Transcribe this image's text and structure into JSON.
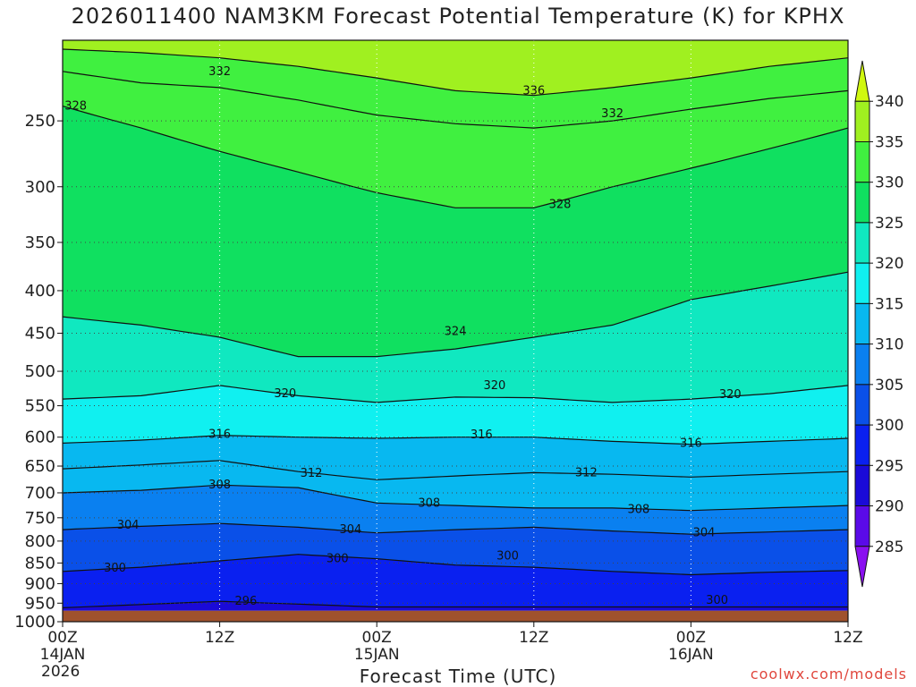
{
  "chart_data": {
    "type": "heatmap",
    "title": "2026011400 NAM3KM Forecast Potential Temperature (K) for KPHX",
    "xlabel": "Forecast Time (UTC)",
    "ylabel": "",
    "credit": "coolwx.com/models",
    "x_ticks": [
      {
        "h": 0,
        "lines": [
          "00Z",
          "14JAN",
          "2026"
        ]
      },
      {
        "h": 12,
        "lines": [
          "12Z"
        ]
      },
      {
        "h": 24,
        "lines": [
          "00Z",
          "15JAN"
        ]
      },
      {
        "h": 36,
        "lines": [
          "12Z"
        ]
      },
      {
        "h": 48,
        "lines": [
          "00Z",
          "16JAN"
        ]
      },
      {
        "h": 60,
        "lines": [
          "12Z"
        ]
      }
    ],
    "xlim": [
      0,
      60
    ],
    "y_ticks": [
      250,
      300,
      350,
      400,
      450,
      500,
      550,
      600,
      650,
      700,
      750,
      800,
      850,
      900,
      950,
      1000
    ],
    "ylim_hpa": [
      200,
      1000
    ],
    "surface_pressure_hpa": 970,
    "colorbar": {
      "levels": [
        285,
        290,
        295,
        300,
        305,
        310,
        315,
        320,
        325,
        330,
        335,
        340
      ],
      "colors": [
        "#8a10f0",
        "#5a0ae8",
        "#1a0ad8",
        "#0a20f0",
        "#0a50e8",
        "#0a80f0",
        "#08b8f0",
        "#10f0f0",
        "#10e8c0",
        "#10e060",
        "#40f040",
        "#a0f020",
        "#d0f810"
      ]
    },
    "contours": [
      {
        "value": 296,
        "label": "296",
        "hours": [
          0,
          12,
          24
        ],
        "p": [
          962,
          945,
          960
        ]
      },
      {
        "value": 300,
        "label": "300",
        "hours": [
          0,
          6,
          12,
          18,
          24,
          30,
          36,
          42,
          48,
          54,
          60
        ],
        "p": [
          870,
          860,
          845,
          830,
          840,
          855,
          860,
          870,
          878,
          872,
          868
        ]
      },
      {
        "value": 304,
        "label": "304",
        "hours": [
          0,
          6,
          12,
          18,
          24,
          30,
          36,
          42,
          48,
          54,
          60
        ],
        "p": [
          775,
          768,
          762,
          770,
          782,
          775,
          770,
          778,
          785,
          780,
          775
        ]
      },
      {
        "value": 308,
        "label": "308",
        "hours": [
          0,
          6,
          12,
          18,
          24,
          30,
          36,
          42,
          48,
          54,
          60
        ],
        "p": [
          700,
          695,
          685,
          690,
          720,
          725,
          730,
          730,
          735,
          730,
          725
        ]
      },
      {
        "value": 312,
        "label": "312",
        "hours": [
          0,
          6,
          12,
          18,
          24,
          30,
          36,
          42,
          48,
          54,
          60
        ],
        "p": [
          655,
          648,
          640,
          660,
          675,
          668,
          662,
          665,
          670,
          665,
          660
        ]
      },
      {
        "value": 316,
        "label": "316",
        "hours": [
          0,
          6,
          12,
          18,
          24,
          30,
          36,
          42,
          48,
          54,
          60
        ],
        "p": [
          610,
          605,
          597,
          600,
          602,
          600,
          600,
          607,
          612,
          607,
          602
        ]
      },
      {
        "value": 320,
        "label": "320",
        "hours": [
          0,
          6,
          12,
          18,
          24,
          30,
          36,
          42,
          48,
          54,
          60
        ],
        "p": [
          540,
          535,
          520,
          535,
          545,
          537,
          538,
          545,
          540,
          532,
          520
        ]
      },
      {
        "value": 324,
        "label": "324",
        "hours": [
          0,
          6,
          12,
          18,
          24,
          30,
          36,
          42,
          48,
          54,
          60
        ],
        "p": [
          430,
          440,
          455,
          480,
          480,
          470,
          455,
          440,
          410,
          395,
          380
        ]
      },
      {
        "value": 328,
        "label": "328",
        "hours": [
          0,
          6,
          12,
          18,
          24,
          30,
          36,
          42,
          48,
          54,
          60
        ],
        "p": [
          240,
          255,
          272,
          288,
          305,
          318,
          318,
          300,
          285,
          270,
          255
        ]
      },
      {
        "value": 332,
        "label": "332",
        "hours": [
          0,
          6,
          12,
          18,
          24,
          30,
          36,
          42,
          48,
          54,
          60
        ],
        "p": [
          218,
          225,
          228,
          236,
          246,
          252,
          255,
          250,
          242,
          235,
          230
        ]
      },
      {
        "value": 336,
        "label": "336",
        "hours": [
          0,
          6,
          12,
          18,
          24,
          30,
          36,
          42,
          48,
          54,
          60
        ],
        "p": [
          205,
          207,
          210,
          215,
          222,
          230,
          233,
          228,
          222,
          215,
          210
        ]
      }
    ],
    "contour_labels": [
      {
        "label": "296",
        "h": 14,
        "p": 945
      },
      {
        "label": "300",
        "h": 4,
        "p": 862
      },
      {
        "label": "300",
        "h": 21,
        "p": 840
      },
      {
        "label": "300",
        "h": 34,
        "p": 834
      },
      {
        "label": "300",
        "h": 50,
        "p": 942
      },
      {
        "label": "304",
        "h": 5,
        "p": 765
      },
      {
        "label": "304",
        "h": 22,
        "p": 775
      },
      {
        "label": "304",
        "h": 49,
        "p": 782
      },
      {
        "label": "308",
        "h": 12,
        "p": 685
      },
      {
        "label": "308",
        "h": 28,
        "p": 720
      },
      {
        "label": "308",
        "h": 44,
        "p": 733
      },
      {
        "label": "312",
        "h": 19,
        "p": 663
      },
      {
        "label": "312",
        "h": 40,
        "p": 662
      },
      {
        "label": "316",
        "h": 12,
        "p": 595
      },
      {
        "label": "316",
        "h": 32,
        "p": 596
      },
      {
        "label": "316",
        "h": 48,
        "p": 610
      },
      {
        "label": "320",
        "h": 17,
        "p": 532
      },
      {
        "label": "320",
        "h": 33,
        "p": 520
      },
      {
        "label": "320",
        "h": 51,
        "p": 533
      },
      {
        "label": "324",
        "h": 30,
        "p": 448
      },
      {
        "label": "328",
        "h": 1,
        "p": 240
      },
      {
        "label": "328",
        "h": 38,
        "p": 315
      },
      {
        "label": "332",
        "h": 12,
        "p": 218
      },
      {
        "label": "332",
        "h": 42,
        "p": 245
      },
      {
        "label": "336",
        "h": 36,
        "p": 230
      }
    ]
  }
}
